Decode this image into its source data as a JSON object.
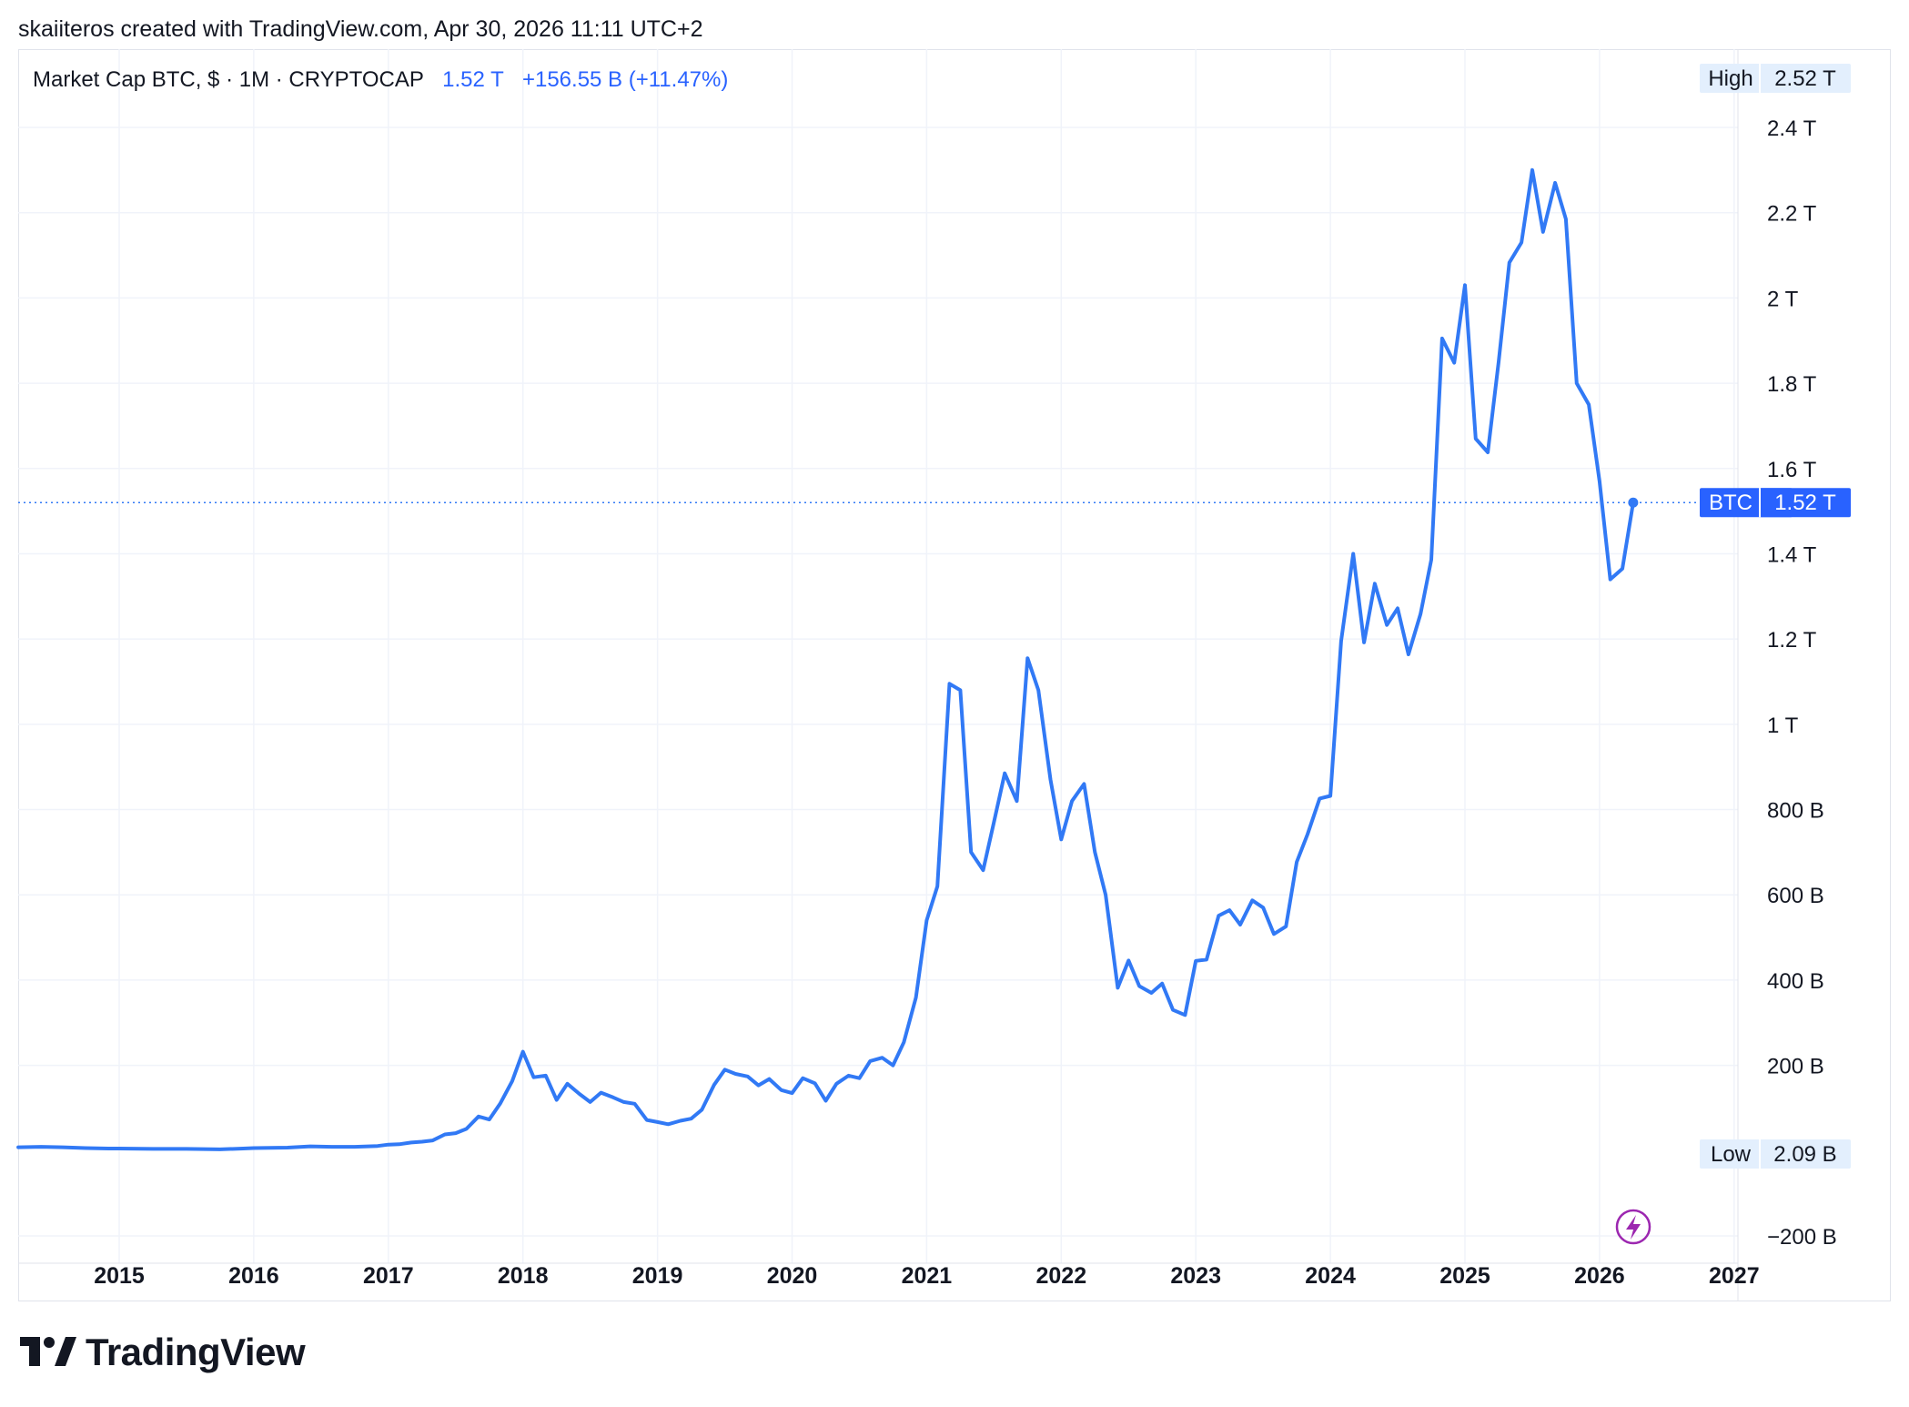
{
  "header": {
    "author_line": "skaiiteros created with TradingView.com, Apr 30, 2026 11:11 UTC+2"
  },
  "legend": {
    "symbol": "Market Cap BTC, $ · 1M · CRYPTOCAP",
    "value": "1.52 T",
    "change": "+156.55 B (+11.47%)"
  },
  "markers": {
    "high_label": "High",
    "high_value": "2.52 T",
    "low_label": "Low",
    "low_value": "2.09 B",
    "last_label": "BTC",
    "last_value": "1.52 T"
  },
  "brand": {
    "name": "TradingView"
  },
  "colors": {
    "line": "#3179f5",
    "grid": "#f0f3fa",
    "accent": "#2962ff",
    "flash": "#9c27b0"
  },
  "chart_data": {
    "type": "line",
    "title": "Market Cap BTC, $ · 1M · CRYPTOCAP",
    "xlabel": "",
    "ylabel": "",
    "x_unit": "year",
    "y_unit": "billion USD",
    "xlim": [
      2014.3,
      2027.2
    ],
    "ylim": [
      -220,
      2600
    ],
    "y_ticks": [
      -200,
      200,
      400,
      600,
      800,
      1000,
      1200,
      1400,
      1600,
      1800,
      2000,
      2200,
      2400
    ],
    "y_tick_labels": [
      "−200 B",
      "200 B",
      "400 B",
      "600 B",
      "800 B",
      "1 T",
      "1.2 T",
      "1.4 T",
      "1.6 T",
      "1.8 T",
      "2 T",
      "2.2 T",
      "2.4 T"
    ],
    "x_ticks": [
      2015,
      2016,
      2017,
      2018,
      2019,
      2020,
      2021,
      2022,
      2023,
      2024,
      2025,
      2026,
      2027
    ],
    "x_tick_labels": [
      "2015",
      "2016",
      "2017",
      "2018",
      "2019",
      "2020",
      "2021",
      "2022",
      "2023",
      "2024",
      "2025",
      "2026",
      "2027"
    ],
    "grid": true,
    "legend": "none",
    "series": [
      {
        "x": [
          2014.25,
          2014.42,
          2014.58,
          2014.75,
          2014.92,
          2015.0,
          2015.25,
          2015.5,
          2015.75,
          2015.92,
          2016.0,
          2016.25,
          2016.42,
          2016.58,
          2016.75,
          2016.92,
          2017.0,
          2017.08,
          2017.17,
          2017.25,
          2017.33,
          2017.42,
          2017.5,
          2017.58,
          2017.67,
          2017.75,
          2017.83,
          2017.92,
          2018.0,
          2018.08,
          2018.17,
          2018.25,
          2018.33,
          2018.42,
          2018.5,
          2018.58,
          2018.67,
          2018.75,
          2018.83,
          2018.92,
          2019.0,
          2019.08,
          2019.17,
          2019.25,
          2019.33,
          2019.42,
          2019.5,
          2019.58,
          2019.67,
          2019.75,
          2019.83,
          2019.92,
          2020.0,
          2020.08,
          2020.17,
          2020.25,
          2020.33,
          2020.42,
          2020.5,
          2020.58,
          2020.67,
          2020.75,
          2020.83,
          2020.92,
          2021.0,
          2021.08,
          2021.17,
          2021.25,
          2021.33,
          2021.42,
          2021.5,
          2021.58,
          2021.67,
          2021.75,
          2021.83,
          2021.92,
          2022.0,
          2022.08,
          2022.17,
          2022.25,
          2022.33,
          2022.42,
          2022.5,
          2022.58,
          2022.67,
          2022.75,
          2022.83,
          2022.92,
          2023.0,
          2023.08,
          2023.17,
          2023.25,
          2023.33,
          2023.42,
          2023.5,
          2023.58,
          2023.67,
          2023.75,
          2023.83,
          2023.92,
          2024.0,
          2024.08,
          2024.17,
          2024.25,
          2024.33,
          2024.42,
          2024.5,
          2024.58,
          2024.67,
          2024.75,
          2024.83,
          2024.92,
          2025.0,
          2025.08,
          2025.17,
          2025.25,
          2025.33,
          2025.42,
          2025.5,
          2025.58,
          2025.67,
          2025.75,
          2025.83,
          2025.92,
          2026.0,
          2026.08,
          2026.17,
          2026.25
        ],
        "values": [
          8,
          9,
          8,
          6,
          5,
          5,
          4,
          4,
          3,
          5,
          6,
          7,
          10,
          9,
          9,
          11,
          14,
          15,
          19,
          21,
          24,
          38,
          41,
          51,
          80,
          73,
          110,
          163,
          232,
          172,
          176,
          119,
          157,
          133,
          114,
          136,
          125,
          114,
          110,
          72,
          67,
          62,
          70,
          75,
          96,
          154,
          190,
          180,
          174,
          153,
          168,
          142,
          135,
          170,
          158,
          117,
          157,
          176,
          170,
          210,
          218,
          200,
          254,
          359,
          540,
          620,
          1095,
          1080,
          700,
          658,
          770,
          885,
          820,
          1155,
          1080,
          870,
          730,
          820,
          860,
          700,
          600,
          382,
          446,
          386,
          370,
          392,
          330,
          318,
          445,
          448,
          551,
          564,
          530,
          587,
          570,
          508,
          526,
          677,
          742,
          826,
          832,
          1195,
          1400,
          1192,
          1330,
          1233,
          1272,
          1164,
          1259,
          1386,
          1905,
          1848,
          2030,
          1670,
          1638,
          1850,
          2083,
          2130,
          2300,
          2155,
          2270,
          2185,
          1800,
          1750,
          1570,
          1340,
          1365,
          1520
        ]
      }
    ]
  }
}
